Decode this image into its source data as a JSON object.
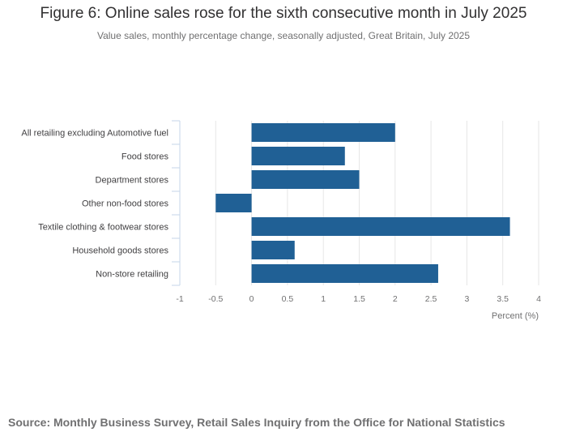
{
  "header": {
    "title": "Figure 6: Online sales rose for the sixth consecutive month in July 2025",
    "subtitle": "Value sales, monthly percentage change, seasonally adjusted, Great Britain, July 2025"
  },
  "footer": {
    "source": "Source: Monthly Business Survey, Retail Sales Inquiry from the Office for National Statistics"
  },
  "colors": {
    "bar": "#206095",
    "grid": "#e6e6e6",
    "axis": "#c6d6e8",
    "tick_text": "#707071",
    "label_text": "#414042"
  },
  "chart_data": {
    "type": "bar",
    "orientation": "horizontal",
    "title": "Figure 6: Online sales rose for the sixth consecutive month in July 2025",
    "subtitle": "Value sales, monthly percentage change, seasonally adjusted, Great Britain, July 2025",
    "xlabel": "Percent (%)",
    "ylabel": "",
    "xlim": [
      -1,
      4
    ],
    "xticks": [
      "-1",
      "-0.5",
      "0",
      "0.5",
      "1",
      "1.5",
      "2",
      "2.5",
      "3",
      "3.5",
      "4"
    ],
    "grid": true,
    "legend": "none",
    "categories": [
      "All retailing excluding Automotive fuel",
      "Food stores",
      "Department stores",
      "Other non-food stores",
      "Textile clothing & footwear stores",
      "Household goods stores",
      "Non-store retailing"
    ],
    "values": [
      2.0,
      1.3,
      1.5,
      -0.5,
      3.6,
      0.6,
      2.6
    ]
  }
}
